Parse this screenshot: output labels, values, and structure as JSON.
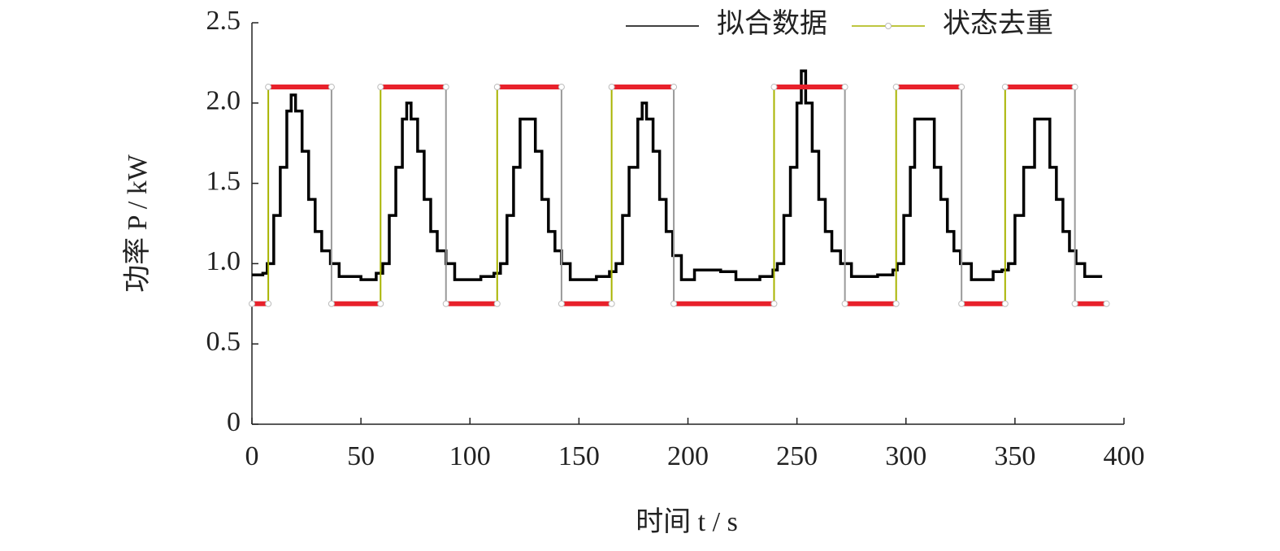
{
  "chart_data": {
    "type": "line",
    "xlabel": "时间 t / s",
    "ylabel": "功率 P / kW",
    "xlim": [
      0,
      400
    ],
    "xticks": [
      0,
      50,
      100,
      150,
      200,
      250,
      300,
      350,
      400
    ],
    "ylim": [
      0,
      2.5
    ],
    "yticks": [
      0,
      0.5,
      {
        "value": 1.0,
        "label": "1.0"
      },
      1.5,
      {
        "value": 2.0,
        "label": "2.0"
      },
      2.5
    ],
    "legend": "top-right",
    "series": [
      {
        "name": "拟合数据",
        "color": "#000000",
        "drawstyle": "steps-post",
        "x": [
          0,
          5,
          7,
          10,
          13,
          16,
          18,
          20,
          23,
          26,
          29,
          32,
          36,
          40,
          50,
          57,
          60,
          63,
          66,
          69,
          71,
          73,
          76,
          79,
          82,
          85,
          89,
          93,
          105,
          111,
          114,
          117,
          120,
          123,
          127,
          130,
          133,
          136,
          139,
          142,
          146,
          158,
          164,
          167,
          170,
          173,
          177,
          179,
          181,
          184,
          187,
          190,
          193,
          197,
          203,
          215,
          222,
          233,
          239,
          241,
          244,
          247,
          250,
          252,
          254,
          257,
          260,
          263,
          266,
          270,
          275,
          287,
          294,
          296,
          299,
          302,
          304,
          310,
          313,
          316,
          319,
          322,
          325,
          330,
          340,
          344,
          347,
          350,
          354,
          359,
          363,
          366,
          369,
          372,
          375,
          378,
          382,
          390
        ],
        "values": [
          0.93,
          0.94,
          1.0,
          1.3,
          1.6,
          1.95,
          2.05,
          1.95,
          1.7,
          1.4,
          1.2,
          1.08,
          1.0,
          0.92,
          0.9,
          0.94,
          1.0,
          1.3,
          1.6,
          1.9,
          2.0,
          1.9,
          1.7,
          1.4,
          1.2,
          1.08,
          1.0,
          0.9,
          0.92,
          0.94,
          1.0,
          1.3,
          1.6,
          1.9,
          1.9,
          1.7,
          1.4,
          1.2,
          1.08,
          1.0,
          0.9,
          0.92,
          0.95,
          1.0,
          1.3,
          1.6,
          1.9,
          2.0,
          1.9,
          1.7,
          1.4,
          1.2,
          1.05,
          0.9,
          0.96,
          0.95,
          0.9,
          0.92,
          0.96,
          1.0,
          1.3,
          1.6,
          2.0,
          2.2,
          2.0,
          1.7,
          1.4,
          1.2,
          1.08,
          1.0,
          0.92,
          0.93,
          0.96,
          1.0,
          1.3,
          1.6,
          1.9,
          1.9,
          1.6,
          1.4,
          1.2,
          1.08,
          1.0,
          0.9,
          0.95,
          0.96,
          1.0,
          1.3,
          1.6,
          1.9,
          1.9,
          1.6,
          1.4,
          1.2,
          1.08,
          1.0,
          0.92,
          0.92
        ]
      },
      {
        "name": "状态去重",
        "color": "#a8b400",
        "level_color": "#e8212b",
        "fall_color": "#9a9a9a",
        "x": [
          0,
          7.5,
          7.5,
          36.5,
          36.5,
          59,
          59,
          89,
          89,
          112.5,
          112.5,
          142,
          142,
          165,
          165,
          193.5,
          193.5,
          239.5,
          239.5,
          272,
          272,
          295.5,
          295.5,
          325.5,
          325.5,
          345.5,
          345.5,
          377.5,
          377.5,
          392
        ],
        "values": [
          0.75,
          0.75,
          2.1,
          2.1,
          0.75,
          0.75,
          2.1,
          2.1,
          0.75,
          0.75,
          2.1,
          2.1,
          0.75,
          0.75,
          2.1,
          2.1,
          0.75,
          0.75,
          2.1,
          2.1,
          0.75,
          0.75,
          2.1,
          2.1,
          0.75,
          0.75,
          2.1,
          2.1,
          0.75,
          0.75
        ]
      }
    ]
  }
}
